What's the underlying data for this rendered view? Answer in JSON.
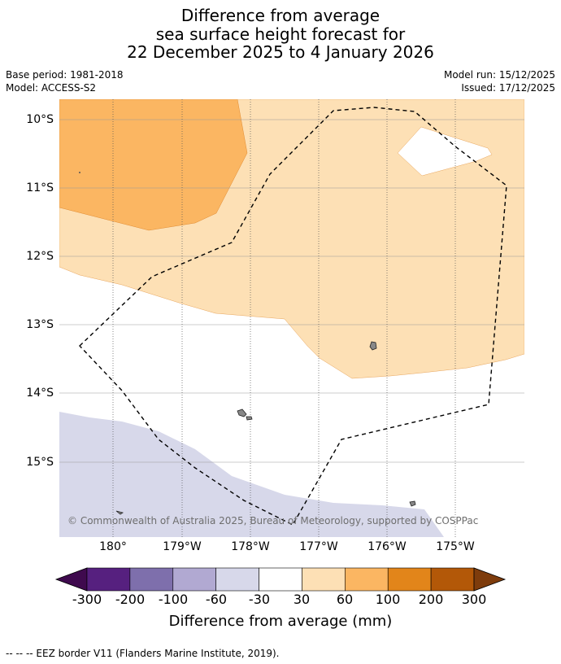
{
  "title": {
    "line1": "Difference from average",
    "line2": "sea surface height forecast for",
    "line3": "22 December 2025 to 4 January 2026"
  },
  "meta": {
    "base_period": "Base period: 1981-2018",
    "model": "Model: ACCESS-S2",
    "model_run": "Model run: 15/12/2025",
    "issued": "Issued: 17/12/2025"
  },
  "map": {
    "lat_labels": [
      "10°S",
      "11°S",
      "12°S",
      "13°S",
      "14°S",
      "15°S"
    ],
    "lon_labels": [
      "180°",
      "179°W",
      "178°W",
      "177°W",
      "176°W",
      "175°W"
    ],
    "copyright": "© Commonwealth of Australia 2025, Bureau of Meteorology, supported by COSPPac"
  },
  "legend": {
    "title": "Difference from average (mm)",
    "ticks": [
      "-300",
      "-200",
      "-100",
      "-60",
      "-30",
      "30",
      "60",
      "100",
      "200",
      "300"
    ],
    "colors": [
      "#3f0a4e",
      "#56207f",
      "#7e6fac",
      "#b1a9d2",
      "#d7d8ea",
      "#ffffff",
      "#fde0b5",
      "#fbb662",
      "#e2851a",
      "#b35808",
      "#7e3c0c"
    ]
  },
  "footnote": "--  --  -- EEZ border V11 (Flanders Marine Institute, 2019)."
}
